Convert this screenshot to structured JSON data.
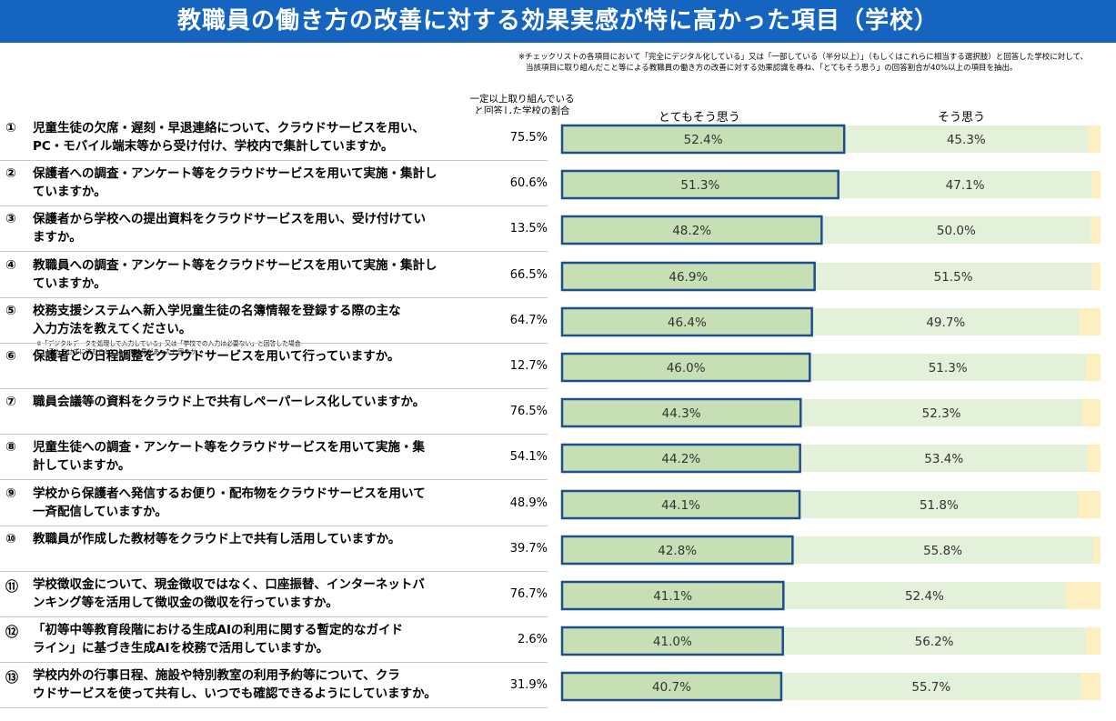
{
  "title": "教職員の働き方の改善に対する効果実感が特に高かった項目（学校）",
  "footnote": [
    "※チェックリストの各項目において「完全にデジタル化している」又は「一部している（半分以上）」（もしくはこれらに相当する選択肢）と回答した学校に対して、",
    "当該項目に取り組んだこと等による教職員の働き方の改善に対する効果認識を尋ね、「とてもそう思う」の回答割合が40%以上の項目を抽出。"
  ],
  "rate_header": [
    "一定以上取り組んでいる",
    "と回答した学校の割合"
  ],
  "colors": {
    "title_bg": "#1565c0",
    "very_much": "#c6dfb4",
    "very_much_border": "#1f4e8c",
    "agree": "#e3f0da",
    "other": "#fdefc0"
  },
  "chart_data": {
    "type": "bar",
    "orientation": "horizontal",
    "stacked": true,
    "xlim": [
      0,
      100
    ],
    "legend": [
      "とてもそう思う",
      "そう思う"
    ],
    "items": [
      {
        "num": "①",
        "lines": [
          "児童生徒の欠席・遅刻・早退連絡について、クラウドサービスを用い、",
          "PC・モバイル端末等から受け付け、学校内で集計していますか。"
        ],
        "rate": "75.5%",
        "very_much": 52.4,
        "agree": 45.3,
        "very_much_label": "52.4%",
        "agree_label": "45.3%"
      },
      {
        "num": "②",
        "lines": [
          "保護者への調査・アンケート等をクラウドサービスを用いて実施・集計し",
          "ていますか。"
        ],
        "rate": "60.6%",
        "very_much": 51.3,
        "agree": 47.1,
        "very_much_label": "51.3%",
        "agree_label": "47.1%"
      },
      {
        "num": "③",
        "lines": [
          "保護者から学校への提出資料をクラウドサービスを用い、受け付けてい",
          "ますか。"
        ],
        "rate": "13.5%",
        "very_much": 48.2,
        "agree": 50.0,
        "very_much_label": "48.2%",
        "agree_label": "50.0%"
      },
      {
        "num": "④",
        "lines": [
          "教職員への調査・アンケート等をクラウドサービスを用いて実施・集計し",
          "ていますか。"
        ],
        "rate": "66.5%",
        "very_much": 46.9,
        "agree": 51.5,
        "very_much_label": "46.9%",
        "agree_label": "51.5%"
      },
      {
        "num": "⑤",
        "lines": [
          "校務支援システムへ新入学児童生徒の名簿情報を登録する際の主な",
          "入力方法を教えてください。"
        ],
        "note": "※「デジタルデータを処理して入力している」又は「学校での入力は必要ない」と回答した場合に、手入力せずに済むことによって効果があったと思うか",
        "rate": "64.7%",
        "very_much": 46.4,
        "agree": 49.7,
        "very_much_label": "46.4%",
        "agree_label": "49.7%"
      },
      {
        "num": "⑥",
        "lines": [
          "保護者との日程調整をクラウドサービスを用いて行っていますか。"
        ],
        "rate": "12.7%",
        "very_much": 46.0,
        "agree": 51.3,
        "very_much_label": "46.0%",
        "agree_label": "51.3%"
      },
      {
        "num": "⑦",
        "lines": [
          "職員会議等の資料をクラウド上で共有しペーパーレス化していますか。"
        ],
        "rate": "76.5%",
        "very_much": 44.3,
        "agree": 52.3,
        "very_much_label": "44.3%",
        "agree_label": "52.3%"
      },
      {
        "num": "⑧",
        "lines": [
          "児童生徒への調査・アンケート等をクラウドサービスを用いて実施・集",
          "計していますか。"
        ],
        "rate": "54.1%",
        "very_much": 44.2,
        "agree": 53.4,
        "very_much_label": "44.2%",
        "agree_label": "53.4%"
      },
      {
        "num": "⑨",
        "lines": [
          "学校から保護者へ発信するお便り・配布物をクラウドサービスを用いて",
          "一斉配信していますか。"
        ],
        "rate": "48.9%",
        "very_much": 44.1,
        "agree": 51.8,
        "very_much_label": "44.1%",
        "agree_label": "51.8%"
      },
      {
        "num": "⑩",
        "lines": [
          "教職員が作成した教材等をクラウド上で共有し活用していますか。"
        ],
        "rate": "39.7%",
        "very_much": 42.8,
        "agree": 55.8,
        "very_much_label": "42.8%",
        "agree_label": "55.8%"
      },
      {
        "num": "⑪",
        "lines": [
          "学校徴収金について、現金徴収ではなく、口座振替、インターネットバ",
          "ンキング等を活用して徴収金の徴収を行っていますか。"
        ],
        "rate": "76.7%",
        "very_much": 41.1,
        "agree": 52.4,
        "very_much_label": "41.1%",
        "agree_label": "52.4%"
      },
      {
        "num": "⑫",
        "lines": [
          "「初等中等教育段階における生成AIの利用に関する暫定的なガイド",
          "ライン」に基づき生成AIを校務で活用していますか。"
        ],
        "rate": "2.6%",
        "very_much": 41.0,
        "agree": 56.2,
        "very_much_label": "41.0%",
        "agree_label": "56.2%"
      },
      {
        "num": "⑬",
        "lines": [
          "学校内外の行事日程、施設や特別教室の利用予約等について、クラ",
          "ウドサービスを使って共有し、いつでも確認できるようにしていますか。"
        ],
        "rate": "31.9%",
        "very_much": 40.7,
        "agree": 55.7,
        "very_much_label": "40.7%",
        "agree_label": "55.7%"
      }
    ]
  }
}
